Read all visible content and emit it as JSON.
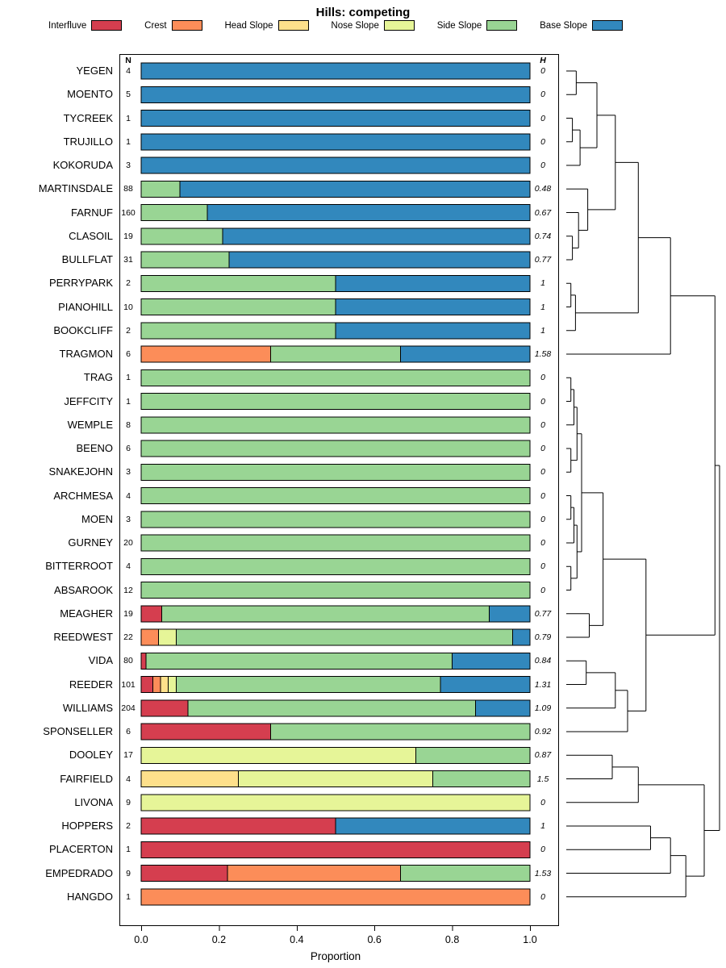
{
  "title": "Hills: competing",
  "columns": {
    "n": "N",
    "h": "H"
  },
  "axis": {
    "label": "Proportion",
    "ticks": [
      "0.0",
      "0.2",
      "0.4",
      "0.6",
      "0.8",
      "1.0"
    ],
    "tick_values": [
      0,
      0.2,
      0.4,
      0.6,
      0.8,
      1.0
    ]
  },
  "legend": [
    {
      "label": "Interfluve",
      "color": "#D53E4F"
    },
    {
      "label": "Crest",
      "color": "#FC8D59"
    },
    {
      "label": "Head Slope",
      "color": "#FEE08B"
    },
    {
      "label": "Nose Slope",
      "color": "#E6F598"
    },
    {
      "label": "Side Slope",
      "color": "#99D594"
    },
    {
      "label": "Base Slope",
      "color": "#3288BD"
    }
  ],
  "chart_data": {
    "type": "bar",
    "orientation": "horizontal-stacked",
    "title": "Hills: competing",
    "xlabel": "Proportion",
    "xlim": [
      0,
      1
    ],
    "categories": [
      "Interfluve",
      "Crest",
      "Head Slope",
      "Nose Slope",
      "Side Slope",
      "Base Slope"
    ],
    "rows": [
      {
        "name": "YEGEN",
        "n": 4,
        "h": "0",
        "p": [
          0,
          0,
          0,
          0,
          0,
          1
        ]
      },
      {
        "name": "MOENTO",
        "n": 5,
        "h": "0",
        "p": [
          0,
          0,
          0,
          0,
          0,
          1
        ]
      },
      {
        "name": "TYCREEK",
        "n": 1,
        "h": "0",
        "p": [
          0,
          0,
          0,
          0,
          0,
          1
        ]
      },
      {
        "name": "TRUJILLO",
        "n": 1,
        "h": "0",
        "p": [
          0,
          0,
          0,
          0,
          0,
          1
        ]
      },
      {
        "name": "KOKORUDA",
        "n": 3,
        "h": "0",
        "p": [
          0,
          0,
          0,
          0,
          0,
          1
        ]
      },
      {
        "name": "MARTINSDALE",
        "n": 88,
        "h": "0.48",
        "p": [
          0,
          0,
          0,
          0,
          0.1,
          0.9
        ]
      },
      {
        "name": "FARNUF",
        "n": 160,
        "h": "0.67",
        "p": [
          0,
          0,
          0,
          0,
          0.17,
          0.83
        ]
      },
      {
        "name": "CLASOIL",
        "n": 19,
        "h": "0.74",
        "p": [
          0,
          0,
          0,
          0,
          0.21,
          0.79
        ]
      },
      {
        "name": "BULLFLAT",
        "n": 31,
        "h": "0.77",
        "p": [
          0,
          0,
          0,
          0,
          0.226,
          0.774
        ]
      },
      {
        "name": "PERRYPARK",
        "n": 2,
        "h": "1",
        "p": [
          0,
          0,
          0,
          0,
          0.5,
          0.5
        ]
      },
      {
        "name": "PIANOHILL",
        "n": 10,
        "h": "1",
        "p": [
          0,
          0,
          0,
          0,
          0.5,
          0.5
        ]
      },
      {
        "name": "BOOKCLIFF",
        "n": 2,
        "h": "1",
        "p": [
          0,
          0,
          0,
          0,
          0.5,
          0.5
        ]
      },
      {
        "name": "TRAGMON",
        "n": 6,
        "h": "1.58",
        "p": [
          0,
          0.333,
          0,
          0,
          0.334,
          0.333
        ]
      },
      {
        "name": "TRAG",
        "n": 1,
        "h": "0",
        "p": [
          0,
          0,
          0,
          0,
          1,
          0
        ]
      },
      {
        "name": "JEFFCITY",
        "n": 1,
        "h": "0",
        "p": [
          0,
          0,
          0,
          0,
          1,
          0
        ]
      },
      {
        "name": "WEMPLE",
        "n": 8,
        "h": "0",
        "p": [
          0,
          0,
          0,
          0,
          1,
          0
        ]
      },
      {
        "name": "BEENO",
        "n": 6,
        "h": "0",
        "p": [
          0,
          0,
          0,
          0,
          1,
          0
        ]
      },
      {
        "name": "SNAKEJOHN",
        "n": 3,
        "h": "0",
        "p": [
          0,
          0,
          0,
          0,
          1,
          0
        ]
      },
      {
        "name": "ARCHMESA",
        "n": 4,
        "h": "0",
        "p": [
          0,
          0,
          0,
          0,
          1,
          0
        ]
      },
      {
        "name": "MOEN",
        "n": 3,
        "h": "0",
        "p": [
          0,
          0,
          0,
          0,
          1,
          0
        ]
      },
      {
        "name": "GURNEY",
        "n": 20,
        "h": "0",
        "p": [
          0,
          0,
          0,
          0,
          1,
          0
        ]
      },
      {
        "name": "BITTERROOT",
        "n": 4,
        "h": "0",
        "p": [
          0,
          0,
          0,
          0,
          1,
          0
        ]
      },
      {
        "name": "ABSAROOK",
        "n": 12,
        "h": "0",
        "p": [
          0,
          0,
          0,
          0,
          1,
          0
        ]
      },
      {
        "name": "MEAGHER",
        "n": 19,
        "h": "0.77",
        "p": [
          0.053,
          0,
          0,
          0,
          0.842,
          0.105
        ]
      },
      {
        "name": "REEDWEST",
        "n": 22,
        "h": "0.79",
        "p": [
          0,
          0.045,
          0,
          0.045,
          0.865,
          0.045
        ]
      },
      {
        "name": "VIDA",
        "n": 80,
        "h": "0.84",
        "p": [
          0.0125,
          0,
          0,
          0,
          0.7875,
          0.2
        ]
      },
      {
        "name": "REEDER",
        "n": 101,
        "h": "1.31",
        "p": [
          0.03,
          0.02,
          0.02,
          0.02,
          0.68,
          0.23
        ]
      },
      {
        "name": "WILLIAMS",
        "n": 204,
        "h": "1.09",
        "p": [
          0.12,
          0,
          0,
          0,
          0.74,
          0.14
        ]
      },
      {
        "name": "SPONSELLER",
        "n": 6,
        "h": "0.92",
        "p": [
          0.333,
          0,
          0,
          0,
          0.667,
          0
        ]
      },
      {
        "name": "DOOLEY",
        "n": 17,
        "h": "0.87",
        "p": [
          0,
          0,
          0,
          0.706,
          0.294,
          0
        ]
      },
      {
        "name": "FAIRFIELD",
        "n": 4,
        "h": "1.5",
        "p": [
          0,
          0,
          0.25,
          0.5,
          0.25,
          0
        ]
      },
      {
        "name": "LIVONA",
        "n": 9,
        "h": "0",
        "p": [
          0,
          0,
          0,
          1,
          0,
          0
        ]
      },
      {
        "name": "HOPPERS",
        "n": 2,
        "h": "1",
        "p": [
          0.5,
          0,
          0,
          0,
          0,
          0.5
        ]
      },
      {
        "name": "PLACERTON",
        "n": 1,
        "h": "0",
        "p": [
          1,
          0,
          0,
          0,
          0,
          0
        ]
      },
      {
        "name": "EMPEDRADO",
        "n": 9,
        "h": "1.53",
        "p": [
          0.222,
          0.445,
          0,
          0,
          0.333,
          0
        ]
      },
      {
        "name": "HANGDO",
        "n": 1,
        "h": "0",
        "p": [
          0,
          1,
          0,
          0,
          0,
          0
        ]
      }
    ],
    "dendrogram": {
      "note": "merges reference leaves L0..L35 (row order top-to-bottom) and prior merges M#; h is normalized merge height 0-1",
      "merges": [
        [
          "L2",
          "L3",
          0.04
        ],
        [
          "L0",
          "L1",
          0.065
        ],
        [
          "M0",
          "L4",
          0.09
        ],
        [
          "M1",
          "M2",
          0.2
        ],
        [
          "L7",
          "L8",
          0.04
        ],
        [
          "M4",
          "L6",
          0.08
        ],
        [
          "M5",
          "L5",
          0.14
        ],
        [
          "M3",
          "M6",
          0.32
        ],
        [
          "L9",
          "L10",
          0.03
        ],
        [
          "M8",
          "L11",
          0.06
        ],
        [
          "M7",
          "M9",
          0.47
        ],
        [
          "M10",
          "L12",
          0.68
        ],
        [
          "L13",
          "L14",
          0.03
        ],
        [
          "M12",
          "L15",
          0.05
        ],
        [
          "L16",
          "L17",
          0.03
        ],
        [
          "M13",
          "M14",
          0.07
        ],
        [
          "L18",
          "L19",
          0.03
        ],
        [
          "M16",
          "L20",
          0.05
        ],
        [
          "L21",
          "L22",
          0.03
        ],
        [
          "M17",
          "M18",
          0.07
        ],
        [
          "M15",
          "M19",
          0.1
        ],
        [
          "L23",
          "L24",
          0.15
        ],
        [
          "M20",
          "M21",
          0.24
        ],
        [
          "L25",
          "L26",
          0.13
        ],
        [
          "M23",
          "L27",
          0.32
        ],
        [
          "M24",
          "L28",
          0.4
        ],
        [
          "M22",
          "M25",
          0.52
        ],
        [
          "M11",
          "M26",
          0.97
        ],
        [
          "L29",
          "L30",
          0.3
        ],
        [
          "M28",
          "L31",
          0.47
        ],
        [
          "L32",
          "L33",
          0.55
        ],
        [
          "M30",
          "L34",
          0.68
        ],
        [
          "M31",
          "L35",
          0.78
        ],
        [
          "M29",
          "M32",
          0.9
        ],
        [
          "M27",
          "M33",
          1.0
        ]
      ]
    }
  }
}
